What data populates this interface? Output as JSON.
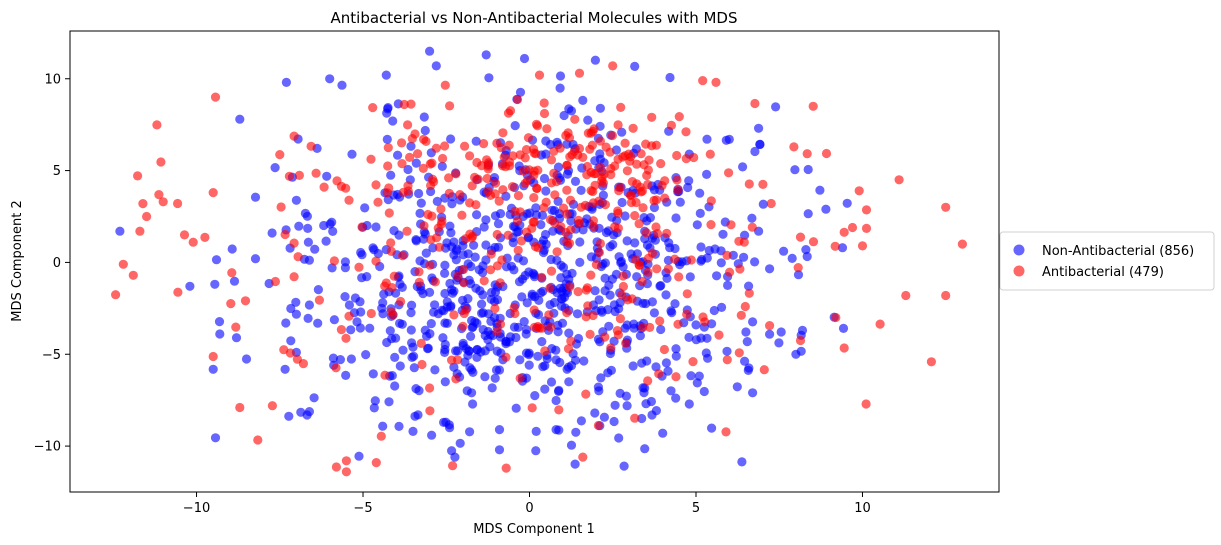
{
  "chart_data": {
    "type": "scatter",
    "title": "Antibacterial vs Non-Antibacterial Molecules with MDS",
    "xlabel": "MDS Component 1",
    "ylabel": "MDS Component 2",
    "xlim": [
      -13.8,
      14.1
    ],
    "ylim": [
      -12.5,
      12.6
    ],
    "xticks": [
      -10,
      -5,
      0,
      5,
      10
    ],
    "yticks": [
      -10,
      -5,
      0,
      5,
      10
    ],
    "grid": false,
    "legend_placement": "right",
    "series": [
      {
        "name": "Non-Antibacterial (856)",
        "color": "#0000ff",
        "alpha": 0.6,
        "seed": 1,
        "count": 856,
        "sample_points": [
          [
            -12.3,
            1.7
          ],
          [
            -10.2,
            -1.3
          ],
          [
            -9.3,
            -3.9
          ],
          [
            -8.8,
            -4.1
          ],
          [
            -7.0,
            -4.9
          ],
          [
            -3.5,
            -9.2
          ],
          [
            -2.4,
            -9.0
          ],
          [
            -0.9,
            -9.1
          ],
          [
            0.2,
            -9.2
          ],
          [
            0.8,
            -9.1
          ],
          [
            4.0,
            -9.3
          ],
          [
            8.0,
            -5.0
          ],
          [
            8.9,
            2.9
          ],
          [
            9.4,
            0.8
          ],
          [
            8.2,
            -3.7
          ],
          [
            6.7,
            -7.1
          ],
          [
            -3.0,
            11.5
          ],
          [
            -1.3,
            11.3
          ],
          [
            -4.3,
            10.2
          ],
          [
            -2.8,
            10.7
          ],
          [
            -6.0,
            10.0
          ],
          [
            -7.3,
            9.8
          ],
          [
            -8.7,
            7.8
          ],
          [
            4.8,
            5.9
          ],
          [
            6.0,
            6.7
          ]
        ]
      },
      {
        "name": "Antibacterial (479)",
        "color": "#ff0000",
        "alpha": 0.6,
        "seed": 7,
        "count": 479,
        "sample_points": [
          [
            -12.2,
            -0.1
          ],
          [
            -11.9,
            -0.7
          ],
          [
            -11.7,
            1.7
          ],
          [
            -11.5,
            2.5
          ],
          [
            -11.0,
            3.3
          ],
          [
            -10.1,
            1.1
          ],
          [
            -9.5,
            3.8
          ],
          [
            -8.7,
            -7.9
          ],
          [
            -5.5,
            -10.8
          ],
          [
            -5.5,
            -11.4
          ],
          [
            -4.6,
            -10.9
          ],
          [
            -0.7,
            -11.2
          ],
          [
            1.6,
            -10.6
          ],
          [
            2.5,
            10.7
          ],
          [
            5.6,
            9.8
          ],
          [
            5.2,
            9.9
          ],
          [
            1.5,
            10.3
          ],
          [
            0.3,
            10.2
          ],
          [
            -0.5,
            5.8
          ],
          [
            11.1,
            4.5
          ],
          [
            12.5,
            3.0
          ],
          [
            13.0,
            1.0
          ],
          [
            11.3,
            -1.8
          ],
          [
            12.5,
            -1.8
          ],
          [
            9.2,
            -3.0
          ],
          [
            10.0,
            0.9
          ],
          [
            9.7,
            1.9
          ],
          [
            9.9,
            3.9
          ]
        ]
      }
    ]
  }
}
